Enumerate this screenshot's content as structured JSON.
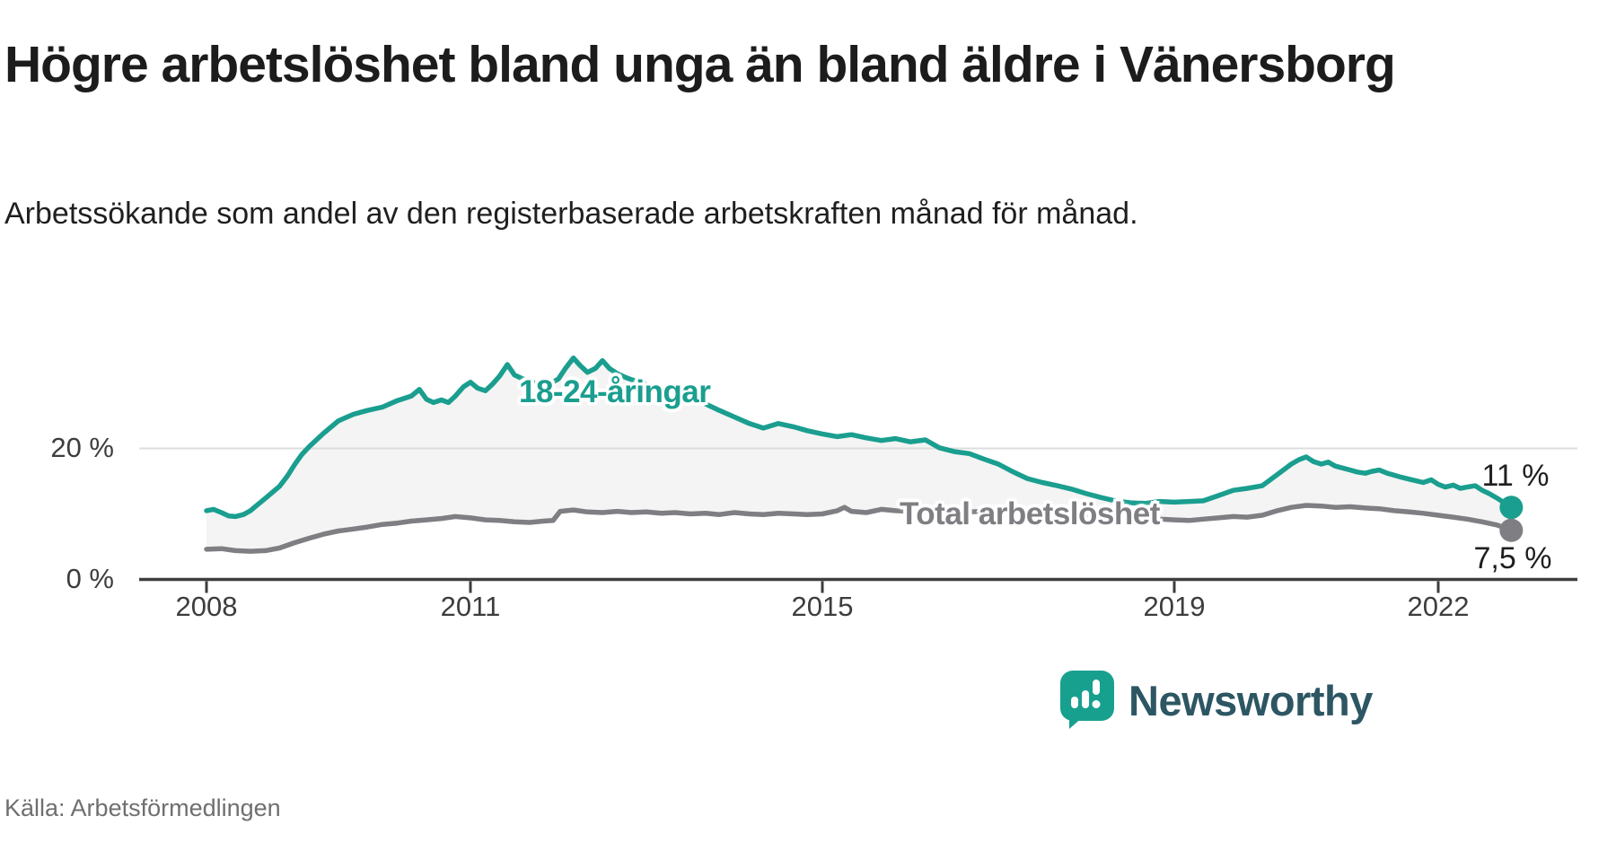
{
  "chart_data": {
    "type": "line",
    "title": "Högre arbetslöshet bland unga än bland äldre i Vänersborg",
    "subtitle": "Arbetssökande som andel av den registerbaserade arbetskraften månad för månad.",
    "source": "Källa: Arbetsförmedlingen",
    "brand": "Newsworthy",
    "x_unit": "year, monthly observations",
    "xlim": [
      2007.2,
      2023.6
    ],
    "ylim": [
      0,
      40
    ],
    "grid": "single horizontal gridline at 20 %, baseline axis at 0 %",
    "legend_position": "inline labels on lines, end-value labels at right",
    "band_fill": "#f4f4f4",
    "axis_color": "#3d3d3d",
    "gridline_color": "#dcdcdc",
    "x_ticks": [
      {
        "year": 2008,
        "label": "2008"
      },
      {
        "year": 2011,
        "label": "2011"
      },
      {
        "year": 2015,
        "label": "2015"
      },
      {
        "year": 2019,
        "label": "2019"
      },
      {
        "year": 2022,
        "label": "2022"
      }
    ],
    "y_ticks": [
      {
        "value": 0,
        "label": "0 %"
      },
      {
        "value": 20,
        "label": "20 %"
      }
    ],
    "series": [
      {
        "name": "18-24-åringar",
        "color": "#1a9e8f",
        "end_label": "11 %",
        "end_value": 11,
        "points": [
          [
            2008.0,
            10.5
          ],
          [
            2008.08,
            10.7
          ],
          [
            2008.17,
            10.2
          ],
          [
            2008.25,
            9.7
          ],
          [
            2008.33,
            9.6
          ],
          [
            2008.42,
            9.9
          ],
          [
            2008.5,
            10.5
          ],
          [
            2008.58,
            11.4
          ],
          [
            2008.67,
            12.4
          ],
          [
            2008.75,
            13.3
          ],
          [
            2008.83,
            14.2
          ],
          [
            2008.92,
            15.8
          ],
          [
            2009.0,
            17.5
          ],
          [
            2009.08,
            19.0
          ],
          [
            2009.17,
            20.3
          ],
          [
            2009.33,
            22.3
          ],
          [
            2009.5,
            24.2
          ],
          [
            2009.67,
            25.2
          ],
          [
            2009.83,
            25.8
          ],
          [
            2010.0,
            26.3
          ],
          [
            2010.17,
            27.3
          ],
          [
            2010.33,
            28.0
          ],
          [
            2010.42,
            29.0
          ],
          [
            2010.5,
            27.5
          ],
          [
            2010.58,
            27.0
          ],
          [
            2010.67,
            27.4
          ],
          [
            2010.75,
            27.0
          ],
          [
            2010.83,
            28.0
          ],
          [
            2010.92,
            29.4
          ],
          [
            2011.0,
            30.1
          ],
          [
            2011.08,
            29.2
          ],
          [
            2011.17,
            28.8
          ],
          [
            2011.25,
            29.8
          ],
          [
            2011.33,
            31.0
          ],
          [
            2011.42,
            32.8
          ],
          [
            2011.5,
            31.2
          ],
          [
            2011.58,
            30.7
          ],
          [
            2011.67,
            30.2
          ],
          [
            2011.75,
            29.9
          ],
          [
            2011.83,
            30.4
          ],
          [
            2011.92,
            30.0
          ],
          [
            2012.0,
            30.6
          ],
          [
            2012.08,
            32.2
          ],
          [
            2012.17,
            33.8
          ],
          [
            2012.25,
            32.6
          ],
          [
            2012.33,
            31.6
          ],
          [
            2012.42,
            32.2
          ],
          [
            2012.5,
            33.4
          ],
          [
            2012.58,
            32.2
          ],
          [
            2012.67,
            31.4
          ],
          [
            2012.75,
            30.9
          ],
          [
            2012.83,
            30.5
          ],
          [
            2013.0,
            29.8
          ],
          [
            2013.17,
            29.2
          ],
          [
            2013.33,
            28.6
          ],
          [
            2013.5,
            27.8
          ],
          [
            2013.67,
            26.8
          ],
          [
            2013.83,
            25.8
          ],
          [
            2014.0,
            24.8
          ],
          [
            2014.17,
            23.8
          ],
          [
            2014.33,
            23.1
          ],
          [
            2014.5,
            23.8
          ],
          [
            2014.67,
            23.3
          ],
          [
            2014.83,
            22.7
          ],
          [
            2015.0,
            22.2
          ],
          [
            2015.17,
            21.8
          ],
          [
            2015.33,
            22.1
          ],
          [
            2015.5,
            21.6
          ],
          [
            2015.67,
            21.2
          ],
          [
            2015.83,
            21.5
          ],
          [
            2016.0,
            21.0
          ],
          [
            2016.17,
            21.3
          ],
          [
            2016.33,
            20.1
          ],
          [
            2016.5,
            19.5
          ],
          [
            2016.67,
            19.2
          ],
          [
            2016.83,
            18.4
          ],
          [
            2017.0,
            17.6
          ],
          [
            2017.17,
            16.4
          ],
          [
            2017.33,
            15.4
          ],
          [
            2017.5,
            14.8
          ],
          [
            2017.67,
            14.3
          ],
          [
            2017.83,
            13.8
          ],
          [
            2018.0,
            13.1
          ],
          [
            2018.17,
            12.5
          ],
          [
            2018.33,
            12.0
          ],
          [
            2018.5,
            11.7
          ],
          [
            2018.67,
            11.6
          ],
          [
            2018.83,
            11.9
          ],
          [
            2019.0,
            11.8
          ],
          [
            2019.17,
            11.9
          ],
          [
            2019.33,
            12.0
          ],
          [
            2019.5,
            12.8
          ],
          [
            2019.67,
            13.6
          ],
          [
            2019.83,
            13.9
          ],
          [
            2020.0,
            14.3
          ],
          [
            2020.17,
            16.0
          ],
          [
            2020.33,
            17.6
          ],
          [
            2020.42,
            18.3
          ],
          [
            2020.5,
            18.7
          ],
          [
            2020.58,
            18.0
          ],
          [
            2020.67,
            17.6
          ],
          [
            2020.75,
            17.9
          ],
          [
            2020.83,
            17.3
          ],
          [
            2021.0,
            16.7
          ],
          [
            2021.08,
            16.4
          ],
          [
            2021.17,
            16.2
          ],
          [
            2021.25,
            16.5
          ],
          [
            2021.33,
            16.7
          ],
          [
            2021.42,
            16.2
          ],
          [
            2021.5,
            15.9
          ],
          [
            2021.58,
            15.6
          ],
          [
            2021.67,
            15.3
          ],
          [
            2021.83,
            14.8
          ],
          [
            2021.92,
            15.2
          ],
          [
            2022.0,
            14.5
          ],
          [
            2022.08,
            14.1
          ],
          [
            2022.17,
            14.4
          ],
          [
            2022.25,
            13.9
          ],
          [
            2022.33,
            14.1
          ],
          [
            2022.42,
            14.3
          ],
          [
            2022.5,
            13.6
          ],
          [
            2022.58,
            13.1
          ],
          [
            2022.67,
            12.4
          ],
          [
            2022.75,
            11.7
          ],
          [
            2022.83,
            11.0
          ]
        ]
      },
      {
        "name": "Total arbetslöshet",
        "color": "#7e7e83",
        "end_label": "7,5 %",
        "end_value": 7.5,
        "points": [
          [
            2008.0,
            4.6
          ],
          [
            2008.17,
            4.7
          ],
          [
            2008.33,
            4.4
          ],
          [
            2008.5,
            4.3
          ],
          [
            2008.67,
            4.4
          ],
          [
            2008.83,
            4.8
          ],
          [
            2009.0,
            5.6
          ],
          [
            2009.17,
            6.3
          ],
          [
            2009.33,
            6.9
          ],
          [
            2009.5,
            7.4
          ],
          [
            2009.67,
            7.7
          ],
          [
            2009.83,
            8.0
          ],
          [
            2010.0,
            8.4
          ],
          [
            2010.17,
            8.6
          ],
          [
            2010.33,
            8.9
          ],
          [
            2010.5,
            9.1
          ],
          [
            2010.67,
            9.3
          ],
          [
            2010.83,
            9.6
          ],
          [
            2011.0,
            9.4
          ],
          [
            2011.17,
            9.1
          ],
          [
            2011.33,
            9.0
          ],
          [
            2011.5,
            8.8
          ],
          [
            2011.67,
            8.7
          ],
          [
            2011.83,
            8.9
          ],
          [
            2011.94,
            9.0
          ],
          [
            2012.02,
            10.4
          ],
          [
            2012.17,
            10.6
          ],
          [
            2012.33,
            10.3
          ],
          [
            2012.5,
            10.2
          ],
          [
            2012.67,
            10.4
          ],
          [
            2012.83,
            10.2
          ],
          [
            2013.0,
            10.3
          ],
          [
            2013.17,
            10.1
          ],
          [
            2013.33,
            10.2
          ],
          [
            2013.5,
            10.0
          ],
          [
            2013.67,
            10.1
          ],
          [
            2013.83,
            9.9
          ],
          [
            2014.0,
            10.2
          ],
          [
            2014.17,
            10.0
          ],
          [
            2014.33,
            9.9
          ],
          [
            2014.5,
            10.1
          ],
          [
            2014.67,
            10.0
          ],
          [
            2014.83,
            9.9
          ],
          [
            2015.0,
            10.0
          ],
          [
            2015.17,
            10.5
          ],
          [
            2015.25,
            11.0
          ],
          [
            2015.33,
            10.4
          ],
          [
            2015.5,
            10.2
          ],
          [
            2015.67,
            10.7
          ],
          [
            2015.83,
            10.5
          ],
          [
            2016.0,
            10.4
          ],
          [
            2016.17,
            10.6
          ],
          [
            2016.33,
            10.4
          ],
          [
            2016.5,
            10.5
          ],
          [
            2016.67,
            10.3
          ],
          [
            2016.83,
            10.4
          ],
          [
            2017.0,
            10.2
          ],
          [
            2017.17,
            10.3
          ],
          [
            2017.33,
            10.1
          ],
          [
            2017.5,
            10.0
          ],
          [
            2017.67,
            9.9
          ],
          [
            2017.83,
            9.8
          ],
          [
            2018.0,
            9.6
          ],
          [
            2018.17,
            9.4
          ],
          [
            2018.33,
            9.3
          ],
          [
            2018.5,
            9.2
          ],
          [
            2018.67,
            9.1
          ],
          [
            2018.83,
            9.2
          ],
          [
            2019.0,
            9.1
          ],
          [
            2019.17,
            9.0
          ],
          [
            2019.33,
            9.2
          ],
          [
            2019.5,
            9.4
          ],
          [
            2019.67,
            9.6
          ],
          [
            2019.83,
            9.5
          ],
          [
            2020.0,
            9.8
          ],
          [
            2020.17,
            10.5
          ],
          [
            2020.33,
            11.0
          ],
          [
            2020.5,
            11.3
          ],
          [
            2020.67,
            11.2
          ],
          [
            2020.83,
            11.0
          ],
          [
            2021.0,
            11.1
          ],
          [
            2021.17,
            10.9
          ],
          [
            2021.33,
            10.8
          ],
          [
            2021.5,
            10.5
          ],
          [
            2021.67,
            10.3
          ],
          [
            2021.83,
            10.1
          ],
          [
            2022.0,
            9.8
          ],
          [
            2022.17,
            9.5
          ],
          [
            2022.33,
            9.2
          ],
          [
            2022.5,
            8.8
          ],
          [
            2022.67,
            8.3
          ],
          [
            2022.83,
            7.5
          ]
        ]
      }
    ]
  }
}
